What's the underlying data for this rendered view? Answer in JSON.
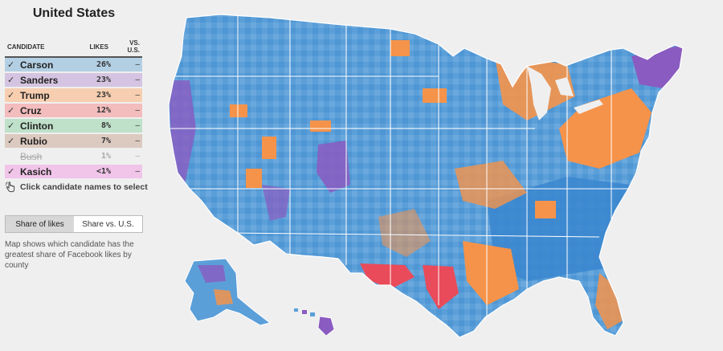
{
  "title": "United States",
  "columns": {
    "candidate": "CANDIDATE",
    "likes": "LIKES",
    "vs": "VS. U.S."
  },
  "candidates": [
    {
      "name": "Carson",
      "likes": "26%",
      "vs": "–",
      "selected": true,
      "color": "#b3cfe4"
    },
    {
      "name": "Sanders",
      "likes": "23%",
      "vs": "–",
      "selected": true,
      "color": "#d5c4e1"
    },
    {
      "name": "Trump",
      "likes": "23%",
      "vs": "–",
      "selected": true,
      "color": "#f7cfb0"
    },
    {
      "name": "Cruz",
      "likes": "12%",
      "vs": "–",
      "selected": true,
      "color": "#f3bcbd"
    },
    {
      "name": "Clinton",
      "likes": "8%",
      "vs": "–",
      "selected": true,
      "color": "#bfe0c9"
    },
    {
      "name": "Rubio",
      "likes": "7%",
      "vs": "–",
      "selected": true,
      "color": "#dccac0"
    },
    {
      "name": "Bush",
      "likes": "1%",
      "vs": "–",
      "selected": false,
      "color": "#efefef"
    },
    {
      "name": "Kasich",
      "likes": "<1%",
      "vs": "–",
      "selected": true,
      "color": "#f1c4e9"
    }
  ],
  "hint": "Click candidate names to select",
  "toggle": {
    "share_of_likes": "Share of likes",
    "share_vs_us": "Share vs. U.S."
  },
  "description": "Map shows which candidate has the greatest share of Facebook likes by county",
  "map_colors": {
    "carson": "#5b9fd9",
    "carson_dark": "#3a86cf",
    "sanders": "#8a5bc0",
    "trump": "#f5934a",
    "cruz": "#e94b5a",
    "state_border": "#ffffff"
  }
}
